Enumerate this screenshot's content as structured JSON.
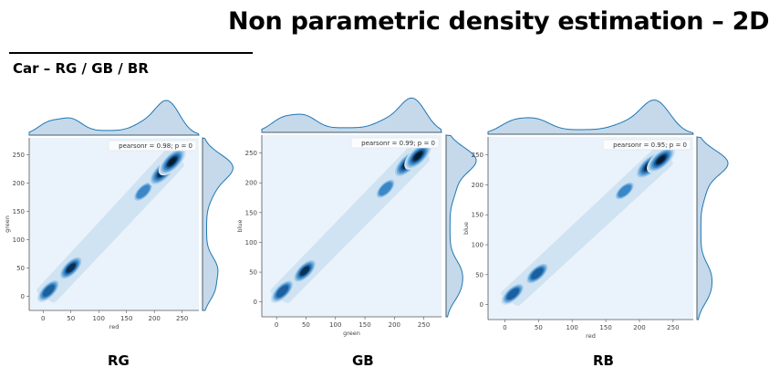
{
  "slide": {
    "title": "Non parametric density estimation – 2D",
    "subtitle": "Car – RG / GB / BR",
    "panel_labels": [
      "RG",
      "GB",
      "RB"
    ]
  },
  "colors": {
    "kde": "#1f77b4",
    "panel_bg": "#eaf3fb",
    "marginal_fill": "#c5d9ea"
  },
  "chart_data": [
    {
      "type": "heatmap",
      "kind": "kde-jointplot",
      "xlabel": "red",
      "ylabel": "green",
      "legend": "pearsonr = 0.98; p = 0",
      "legend_position": "top-right",
      "xticks": [
        0,
        50,
        100,
        150,
        200,
        250
      ],
      "yticks": [
        0,
        50,
        100,
        150,
        200,
        250
      ],
      "xlim": [
        -25,
        280
      ],
      "ylim": [
        -25,
        280
      ],
      "density_modes": [
        {
          "x": 10,
          "y": 10,
          "weight": 0.6
        },
        {
          "x": 50,
          "y": 50,
          "weight": 0.7
        },
        {
          "x": 180,
          "y": 185,
          "weight": 0.4
        },
        {
          "x": 215,
          "y": 220,
          "weight": 1.0
        },
        {
          "x": 232,
          "y": 238,
          "weight": 0.95
        }
      ]
    },
    {
      "type": "heatmap",
      "kind": "kde-jointplot",
      "xlabel": "green",
      "ylabel": "blue",
      "legend": "pearsonr = 0.99; p = 0",
      "legend_position": "top-right",
      "xticks": [
        0,
        50,
        100,
        150,
        200,
        250
      ],
      "yticks": [
        0,
        50,
        100,
        150,
        200,
        250
      ],
      "xlim": [
        -25,
        280
      ],
      "ylim": [
        -25,
        280
      ],
      "density_modes": [
        {
          "x": 10,
          "y": 18,
          "weight": 0.65
        },
        {
          "x": 48,
          "y": 52,
          "weight": 0.7
        },
        {
          "x": 185,
          "y": 190,
          "weight": 0.4
        },
        {
          "x": 222,
          "y": 232,
          "weight": 1.0
        },
        {
          "x": 240,
          "y": 245,
          "weight": 0.95
        }
      ]
    },
    {
      "type": "heatmap",
      "kind": "kde-jointplot",
      "xlabel": "red",
      "ylabel": "blue",
      "legend": "pearsonr = 0.95; p = 0",
      "legend_position": "top-right",
      "xticks": [
        0,
        50,
        100,
        150,
        200,
        250
      ],
      "yticks": [
        0,
        50,
        100,
        150,
        200,
        250
      ],
      "xlim": [
        -25,
        280
      ],
      "ylim": [
        -25,
        280
      ],
      "density_modes": [
        {
          "x": 12,
          "y": 18,
          "weight": 0.6
        },
        {
          "x": 48,
          "y": 52,
          "weight": 0.6
        },
        {
          "x": 178,
          "y": 190,
          "weight": 0.35
        },
        {
          "x": 215,
          "y": 232,
          "weight": 1.0
        },
        {
          "x": 232,
          "y": 242,
          "weight": 0.95
        }
      ]
    }
  ]
}
